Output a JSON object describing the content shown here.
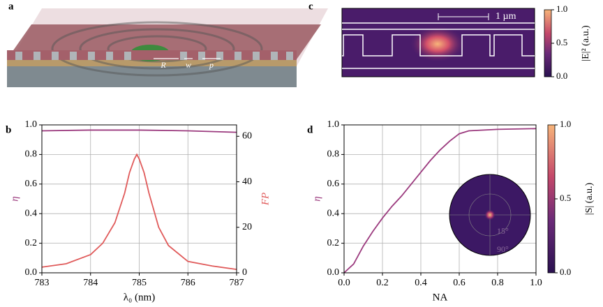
{
  "chart_data": [
    {
      "type": "illustration",
      "panel": "a",
      "annotations": [
        "R",
        "w",
        "p"
      ]
    },
    {
      "type": "line",
      "panel": "b",
      "xlabel": "λ₀ (nm)",
      "ylabel": "η",
      "y2label": "FP",
      "xlim": [
        783,
        787
      ],
      "xticks": [
        783,
        784,
        785,
        786,
        787
      ],
      "ylim": [
        0,
        1
      ],
      "yticks": [
        {
          "value": 0,
          "label": "0.0"
        },
        {
          "value": 0.2,
          "label": "0.2"
        },
        {
          "value": 0.4,
          "label": "0.4"
        },
        {
          "value": 0.6,
          "label": "0.6"
        },
        {
          "value": 0.8,
          "label": "0.8"
        },
        {
          "value": 1,
          "label": "1.0"
        }
      ],
      "y2lim": [
        0,
        65
      ],
      "y2ticks": [
        0,
        20,
        40,
        60
      ],
      "grid": true,
      "series": [
        {
          "color": "#9b3a7e",
          "x": [
            783,
            784,
            785,
            786,
            787
          ],
          "values": [
            0.96,
            0.965,
            0.965,
            0.96,
            0.95
          ]
        },
        {
          "color": "#e05a5a",
          "axis": "y2",
          "x": [
            783,
            783.5,
            784,
            784.25,
            784.5,
            784.7,
            784.8,
            784.9,
            784.95,
            785,
            785.1,
            785.2,
            785.4,
            785.6,
            786,
            786.5,
            787
          ],
          "values": [
            2.5,
            4,
            8,
            13,
            22,
            35,
            44,
            50,
            52,
            50,
            44,
            35,
            20,
            12,
            5,
            3,
            1.5
          ]
        }
      ]
    },
    {
      "type": "heatmap",
      "panel": "c",
      "scale_bar": "1 µm",
      "colorbar_label": "|E|² (a.u.)",
      "colorbar_lim": [
        0,
        1
      ],
      "colorbar_ticks": [
        {
          "value": 0,
          "label": "0.0"
        },
        {
          "value": 0.5,
          "label": "0.5"
        },
        {
          "value": 1,
          "label": "1.0"
        }
      ]
    },
    {
      "type": "line",
      "panel": "d",
      "xlabel": "NA",
      "ylabel": "η",
      "xlim": [
        0,
        1
      ],
      "xticks": [
        {
          "value": 0,
          "label": "0.0"
        },
        {
          "value": 0.2,
          "label": "0.2"
        },
        {
          "value": 0.4,
          "label": "0.4"
        },
        {
          "value": 0.6,
          "label": "0.6"
        },
        {
          "value": 0.8,
          "label": "0.8"
        },
        {
          "value": 1,
          "label": "1.0"
        }
      ],
      "ylim": [
        0,
        1
      ],
      "yticks": [
        {
          "value": 0,
          "label": "0.0"
        },
        {
          "value": 0.2,
          "label": "0.2"
        },
        {
          "value": 0.4,
          "label": "0.4"
        },
        {
          "value": 0.6,
          "label": "0.6"
        },
        {
          "value": 0.8,
          "label": "0.8"
        },
        {
          "value": 1,
          "label": "1.0"
        }
      ],
      "grid": true,
      "series": [
        {
          "color": "#9b3a7e",
          "x": [
            0,
            0.05,
            0.1,
            0.15,
            0.2,
            0.25,
            0.3,
            0.35,
            0.4,
            0.45,
            0.5,
            0.55,
            0.6,
            0.65,
            0.8,
            1
          ],
          "values": [
            0,
            0.06,
            0.18,
            0.28,
            0.37,
            0.45,
            0.52,
            0.6,
            0.68,
            0.76,
            0.83,
            0.89,
            0.94,
            0.96,
            0.97,
            0.975
          ]
        }
      ],
      "inset": {
        "type": "polar",
        "labels": [
          "15°",
          "90°"
        ]
      },
      "colorbar_label": "|S| (a.u.)",
      "colorbar_lim": [
        0,
        1
      ],
      "colorbar_ticks": [
        {
          "value": 0,
          "label": "0.0"
        },
        {
          "value": 0.5,
          "label": "0.5"
        },
        {
          "value": 1,
          "label": "1.0"
        }
      ]
    }
  ]
}
